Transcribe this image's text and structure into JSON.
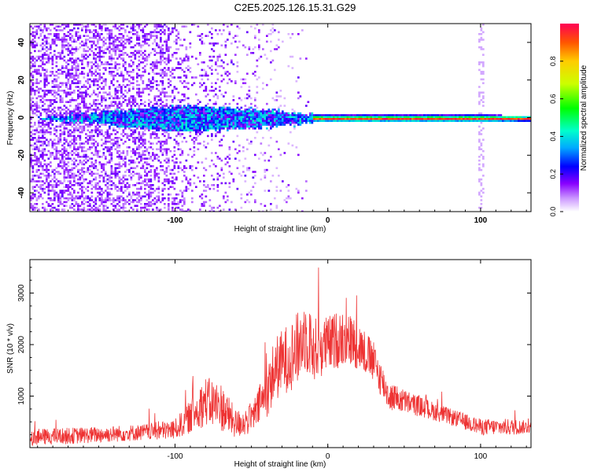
{
  "title": "C2E5.2025.126.15.31.G29",
  "colors": {
    "snr_line": "#ee3333",
    "band_center": "#dd2222",
    "noise": "#7722ee"
  },
  "chart_data": [
    {
      "type": "heatmap",
      "title": "C2E5.2025.126.15.31.G29",
      "xlabel": "Height of straight line (km)",
      "ylabel": "Frequency (Hz)",
      "xlim": [
        -195,
        133
      ],
      "ylim": [
        -50,
        50
      ],
      "x_ticks": [
        -100,
        0,
        100
      ],
      "y_ticks": [
        -40,
        -20,
        0,
        20,
        40
      ],
      "colorbar": {
        "label": "Normalized spectral amplitude",
        "range": [
          0,
          1
        ],
        "ticks": [
          0.0,
          0.2,
          0.4,
          0.6,
          0.8
        ]
      },
      "description_points": [
        {
          "x": -195,
          "noise_level": 0.15,
          "band_halfwidth": 0
        },
        {
          "x": -110,
          "noise_level": 0.12,
          "band_halfwidth": 6
        },
        {
          "x": -90,
          "noise_level": 0.05,
          "band_halfwidth": 7
        },
        {
          "x": -30,
          "noise_level": 0.02,
          "band_halfwidth": 4
        },
        {
          "x": -10,
          "noise_level": 0.0,
          "band_halfwidth": 2
        },
        {
          "x": 100,
          "noise_level": 0.0,
          "band_halfwidth": 2
        },
        {
          "x": 133,
          "noise_level": 0.0,
          "band_halfwidth": 1.5
        }
      ]
    },
    {
      "type": "line",
      "xlabel": "Height of straight line (km)",
      "ylabel": "SNR (10 * v/v)",
      "xlim": [
        -195,
        133
      ],
      "ylim": [
        0,
        3650
      ],
      "x_ticks": [
        -100,
        0,
        100
      ],
      "y_ticks": [
        1000,
        2000,
        3000
      ],
      "envelope": {
        "x": [
          -195,
          -150,
          -120,
          -100,
          -90,
          -80,
          -70,
          -60,
          -50,
          -40,
          -35,
          -30,
          -20,
          -15,
          -10,
          0,
          10,
          20,
          30,
          40,
          60,
          80,
          100,
          120,
          133
        ],
        "y": [
          200,
          250,
          300,
          350,
          600,
          900,
          800,
          450,
          550,
          1050,
          1500,
          1650,
          1900,
          2200,
          1900,
          2000,
          2150,
          2000,
          1650,
          1000,
          800,
          600,
          400,
          400,
          400
        ],
        "amplitude": [
          200,
          200,
          200,
          250,
          400,
          600,
          600,
          350,
          350,
          600,
          800,
          800,
          900,
          900,
          800,
          700,
          700,
          600,
          500,
          350,
          250,
          200,
          200,
          200,
          150
        ]
      }
    }
  ]
}
